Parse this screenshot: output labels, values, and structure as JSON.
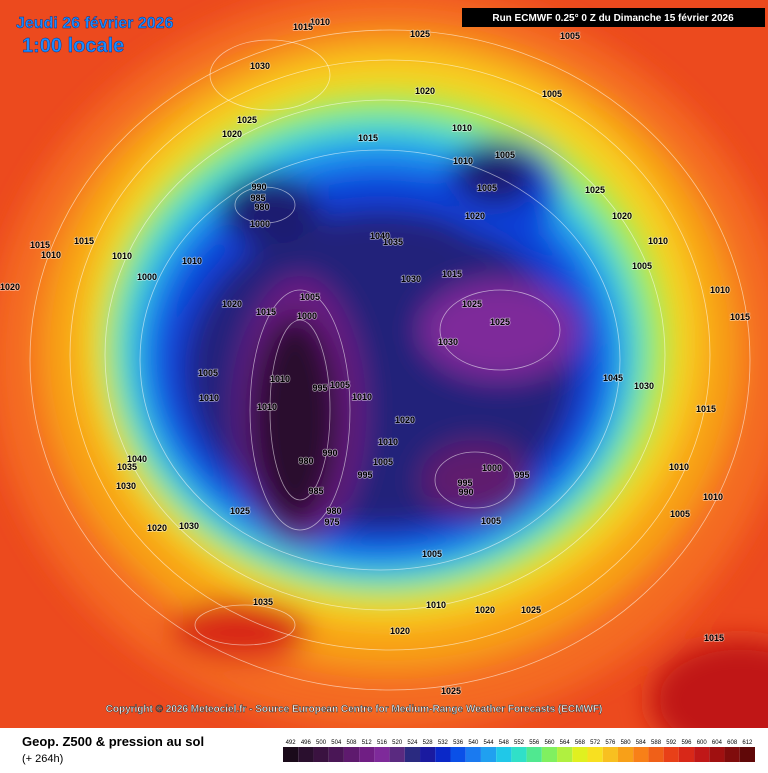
{
  "header": {
    "date": "Jeudi 26 février 2026",
    "time": "1:00 locale",
    "run": "Run ECMWF 0.25° 0 Z du Dimanche 15 février 2026"
  },
  "copyright": "Copyright © 2026 Meteociel.fr - Source European Centre for Medium-Range Weather Forecasts (ECMWF)",
  "footer": {
    "title": "Geop. Z500 & pression au sol",
    "lead": "(+ 264h)"
  },
  "scale": {
    "values": [
      492,
      496,
      500,
      504,
      508,
      512,
      516,
      520,
      524,
      528,
      532,
      536,
      540,
      544,
      548,
      552,
      556,
      560,
      564,
      568,
      572,
      576,
      580,
      584,
      588,
      592,
      596,
      600,
      604,
      608,
      612
    ],
    "colors": [
      "#1a0a1a",
      "#2a0f2e",
      "#3a1240",
      "#4a1656",
      "#5e1a6e",
      "#701e84",
      "#7e2a9a",
      "#5a2a80",
      "#2a2a80",
      "#1a1aa0",
      "#0a28c8",
      "#0a50e8",
      "#1a7af0",
      "#20a0f0",
      "#20c8e8",
      "#30e0c8",
      "#50e890",
      "#80f060",
      "#b0f040",
      "#e0f020",
      "#f8e020",
      "#f8c020",
      "#f8a018",
      "#f88018",
      "#f06018",
      "#e84018",
      "#d82818",
      "#c01818",
      "#a01010",
      "#800c0c",
      "#600808"
    ]
  },
  "pressure_labels": [
    "1010",
    "1015",
    "1025",
    "1005",
    "1030",
    "1020",
    "1005",
    "1025",
    "1020",
    "1015",
    "1010",
    "1005",
    "1010",
    "1005",
    "990",
    "985",
    "980",
    "1000",
    "1020",
    "1040",
    "1035",
    "1015",
    "1015",
    "1010",
    "1010",
    "1000",
    "1010",
    "1030",
    "1015",
    "1005",
    "1025",
    "1000",
    "1025",
    "1030",
    "1020",
    "1015",
    "1005",
    "1010",
    "1010",
    "1010",
    "995",
    "1005",
    "1010",
    "1020",
    "1010",
    "990",
    "980",
    "1005",
    "995",
    "1000",
    "995",
    "995",
    "990",
    "985",
    "980",
    "975",
    "1005",
    "1025",
    "1020",
    "1030",
    "1040",
    "1035",
    "1030",
    "1005",
    "1035",
    "1010",
    "1020",
    "1025",
    "1020",
    "1025",
    "1015",
    "1005",
    "1010",
    "1010",
    "1015",
    "1030",
    "1045",
    "1005",
    "1010",
    "1020",
    "1025",
    "1010",
    "1015",
    "1020"
  ]
}
